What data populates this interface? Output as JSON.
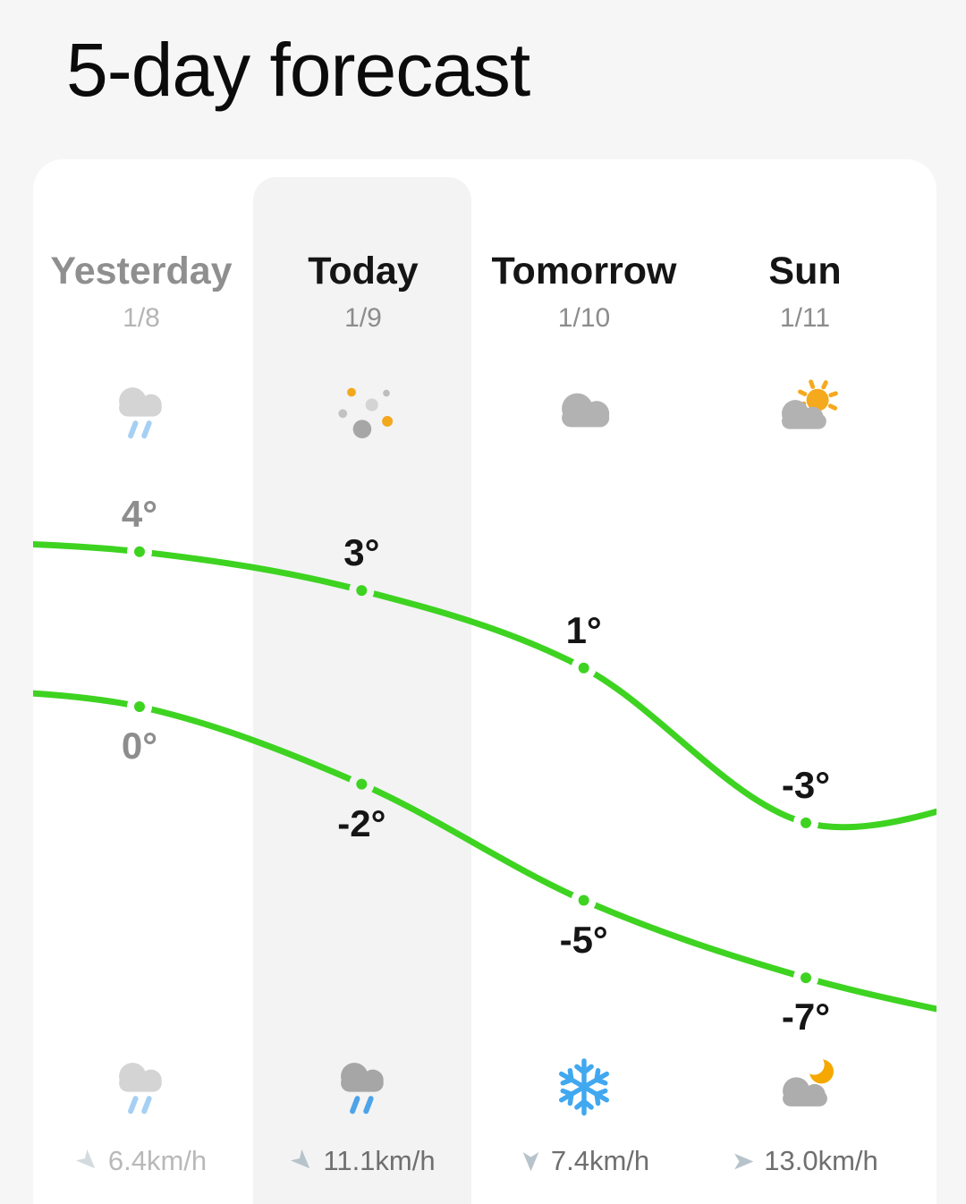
{
  "title": "5-day forecast",
  "days": [
    {
      "name": "Yesterday",
      "date": "1/8",
      "state": "past",
      "condition_day": "rain",
      "condition_night": "rain",
      "high_label": "4°",
      "low_label": "0°",
      "wind": {
        "speed": "6.4km/h",
        "direction_deg": 135
      }
    },
    {
      "name": "Today",
      "date": "1/9",
      "state": "selected",
      "condition_day": "sleet",
      "condition_night": "rain",
      "high_label": "3°",
      "low_label": "-2°",
      "wind": {
        "speed": "11.1km/h",
        "direction_deg": 135
      }
    },
    {
      "name": "Tomorrow",
      "date": "1/10",
      "state": "normal",
      "condition_day": "cloudy",
      "condition_night": "snow",
      "high_label": "1°",
      "low_label": "-5°",
      "wind": {
        "speed": "7.4km/h",
        "direction_deg": 180
      }
    },
    {
      "name": "Sun",
      "date": "1/11",
      "state": "normal",
      "condition_day": "partly-sunny",
      "condition_night": "cloudy-night",
      "high_label": "-3°",
      "low_label": "-7°",
      "wind": {
        "speed": "13.0km/h",
        "direction_deg": 90
      }
    }
  ],
  "chart_data": {
    "type": "line",
    "categories": [
      "Yesterday 1/8",
      "Today 1/9",
      "Tomorrow 1/10",
      "Sun 1/11"
    ],
    "series": [
      {
        "name": "High",
        "values": [
          4,
          3,
          1,
          -3
        ]
      },
      {
        "name": "Low",
        "values": [
          0,
          -2,
          -5,
          -7
        ]
      }
    ],
    "unit": "°C",
    "point_labels_high": [
      "4°",
      "3°",
      "1°",
      "-3°"
    ],
    "point_labels_low": [
      "0°",
      "-2°",
      "-5°",
      "-7°"
    ],
    "line_color": "#3ed321",
    "grid": false,
    "legend": "none"
  },
  "colors": {
    "accent_green": "#3ed321",
    "page_bg": "#f6f6f6",
    "card_bg": "#ffffff",
    "selected_col_bg": "#f3f3f4",
    "rain_blue": "#4da3e8",
    "snow_blue": "#41a8f0",
    "sun_orange": "#f5a91d"
  }
}
